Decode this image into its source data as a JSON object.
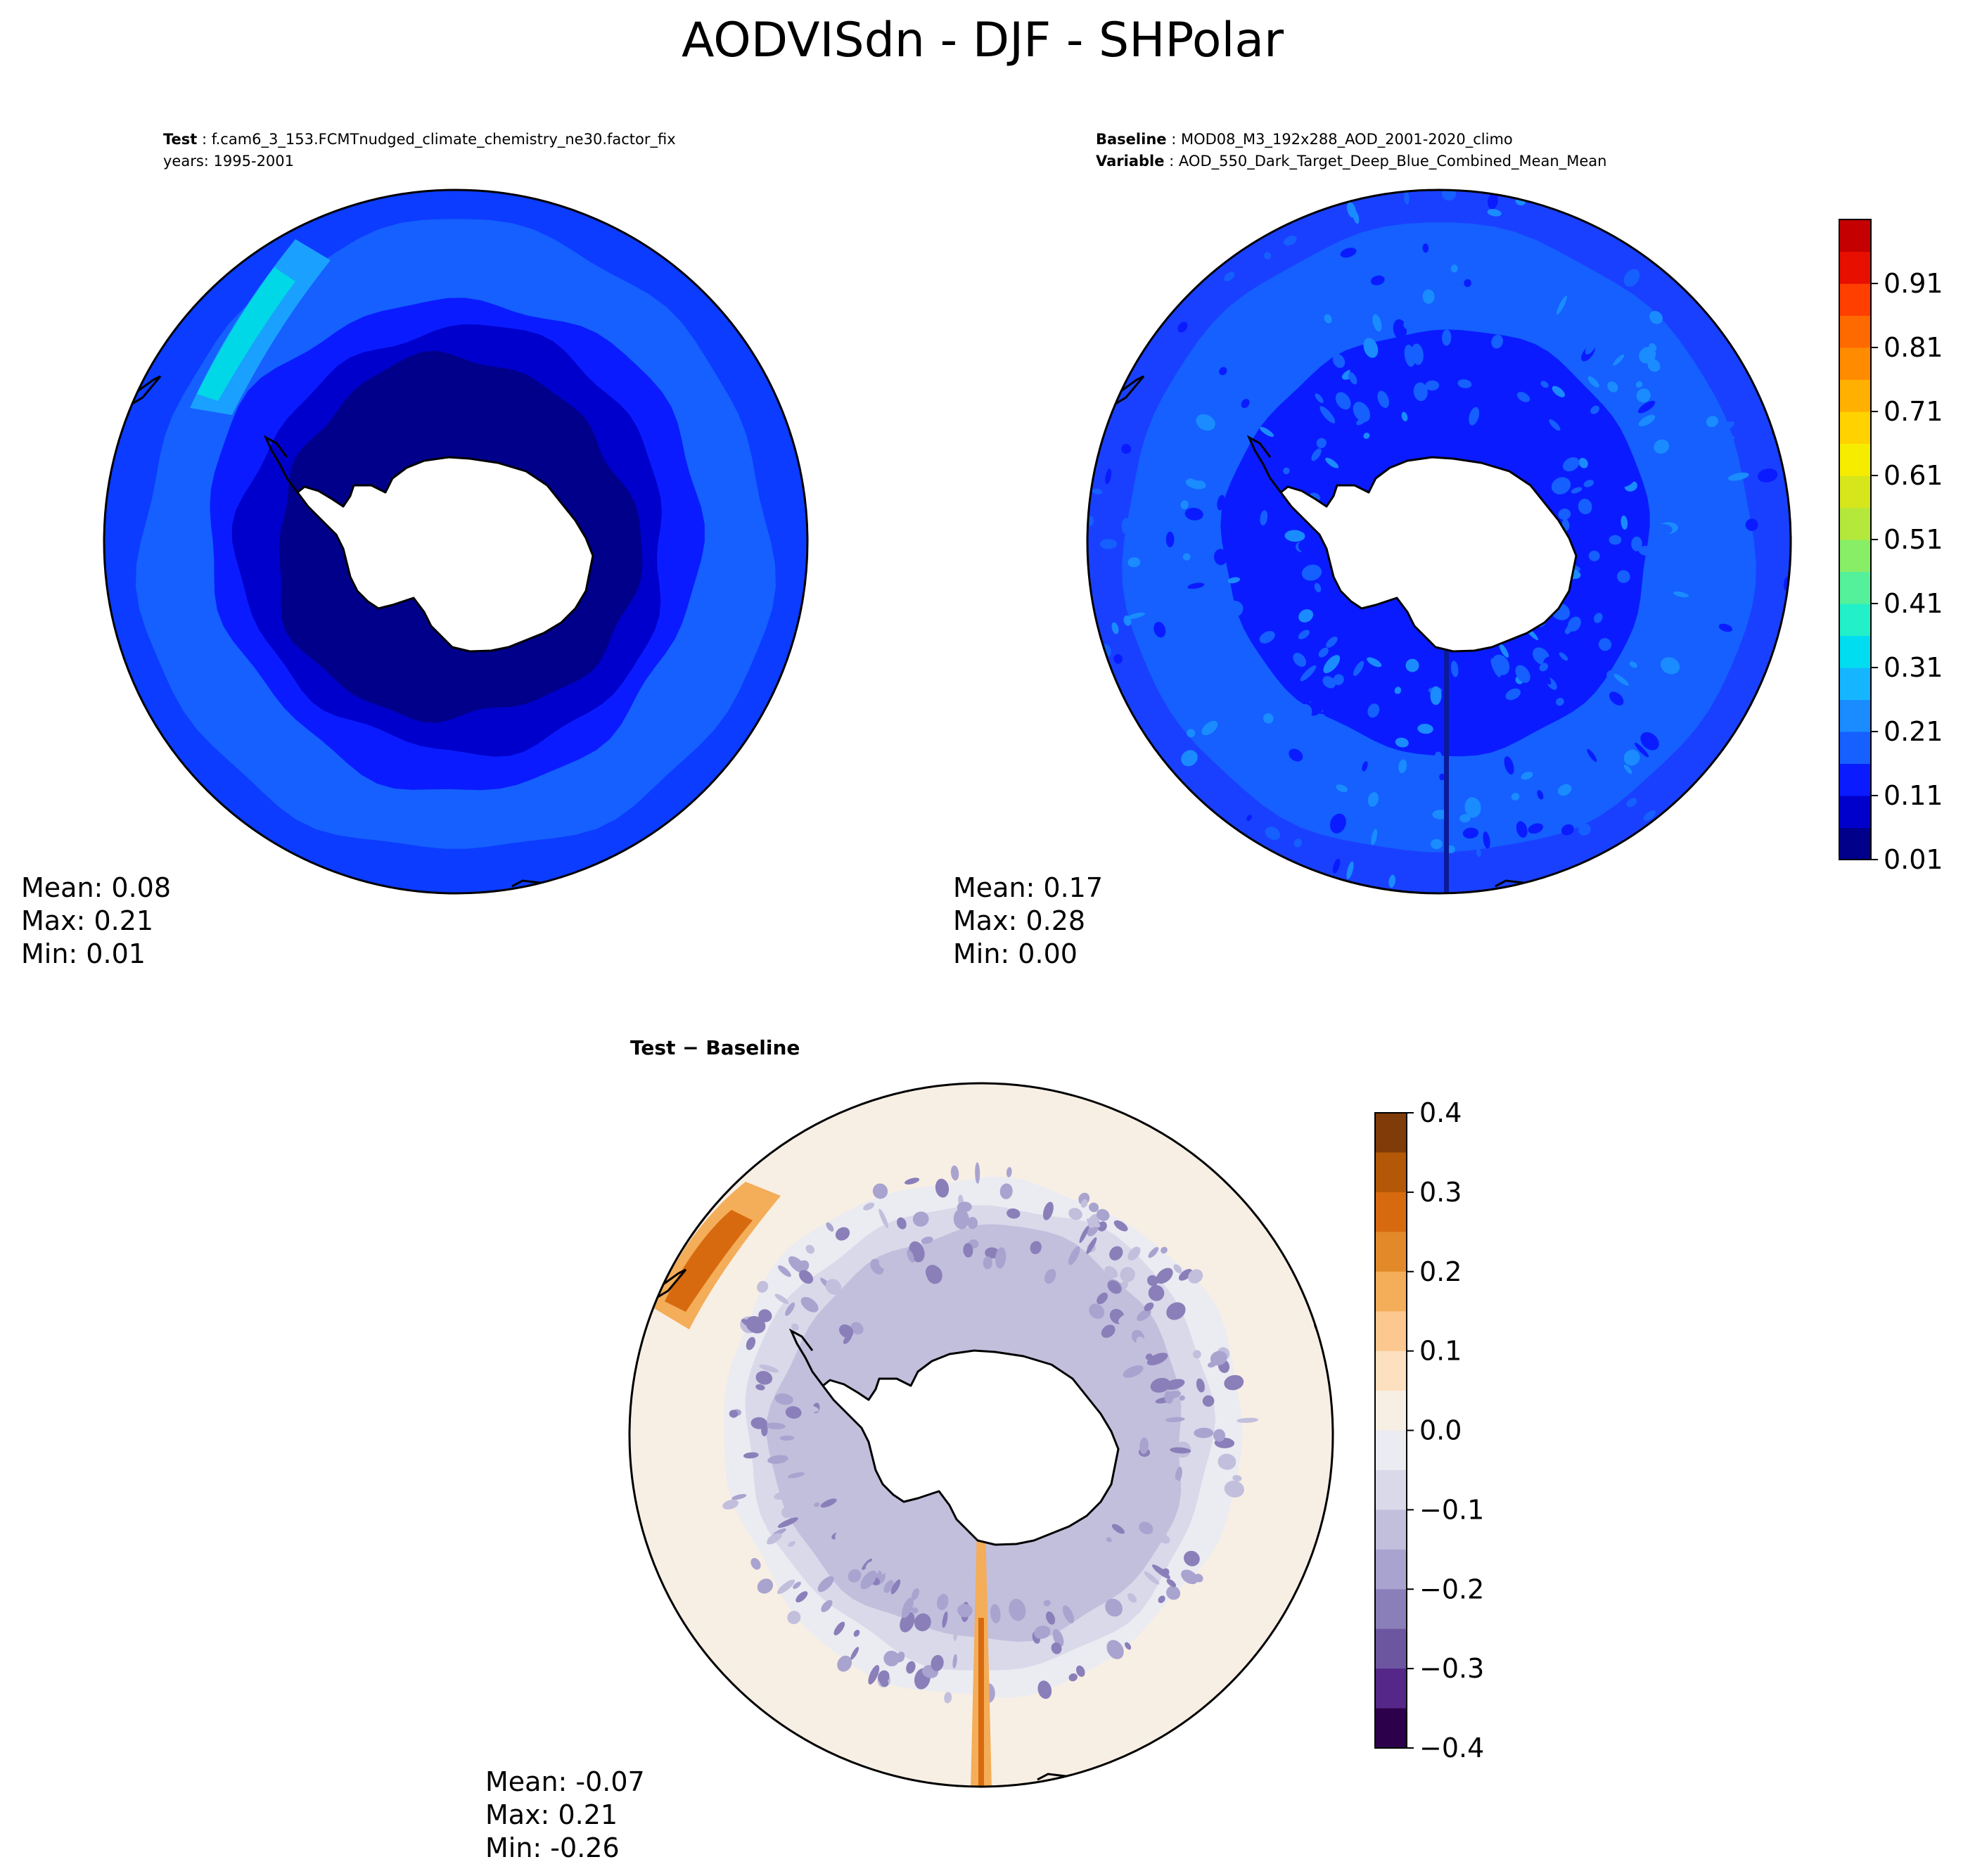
{
  "figure": {
    "title": "AODVISdn - DJF - SHPolar"
  },
  "chart_data": [
    {
      "type": "heatmap",
      "projection": "south-polar-stereographic",
      "panel": "test",
      "header": {
        "line1_key": "Test",
        "line1_value": "f.cam6_3_153.FCMTnudged_climate_chemistry_ne30.factor_fix",
        "line2": "years: 1995-2001"
      },
      "stats": {
        "mean": "Mean:  0.08",
        "max": "Max:  0.21",
        "min": "Min:  0.01"
      },
      "field_rings": [
        {
          "lat": -40,
          "value": 0.2
        },
        {
          "lat": -45,
          "value": 0.17
        },
        {
          "lat": -50,
          "value": 0.14
        },
        {
          "lat": -55,
          "value": 0.1
        },
        {
          "lat": -60,
          "value": 0.05
        },
        {
          "lat": -66,
          "value": 0.02
        }
      ],
      "colormap": "continuous-levels",
      "colorbar_shared_with": "baseline"
    },
    {
      "type": "heatmap",
      "projection": "south-polar-stereographic",
      "panel": "baseline",
      "header": {
        "line1_key": "Baseline",
        "line1_value": "MOD08_M3_192x288_AOD_2001-2020_climo",
        "line2_key": "Variable",
        "line2_value": "AOD_550_Dark_Target_Deep_Blue_Combined_Mean_Mean"
      },
      "stats": {
        "mean": "Mean:  0.17",
        "max": "Max:  0.28",
        "min": "Min:  0.00"
      },
      "field_rings": [
        {
          "lat": -40,
          "value": 0.17
        },
        {
          "lat": -48,
          "value": 0.16
        },
        {
          "lat": -55,
          "value": 0.15
        },
        {
          "lat": -62,
          "value": 0.14
        }
      ],
      "colorbar": {
        "range": [
          0.01,
          1.01
        ],
        "ticks": [
          "0.01",
          "0.11",
          "0.21",
          "0.31",
          "0.41",
          "0.51",
          "0.61",
          "0.71",
          "0.81",
          "0.91"
        ],
        "levels": [
          0.01,
          0.06,
          0.11,
          0.16,
          0.21,
          0.26,
          0.31,
          0.36,
          0.41,
          0.46,
          0.51,
          0.56,
          0.61,
          0.66,
          0.71,
          0.76,
          0.81,
          0.86,
          0.91,
          0.96,
          1.01
        ],
        "colors": [
          "#00008b",
          "#0000cd",
          "#0a1cff",
          "#1560ff",
          "#1a8cff",
          "#15b6ff",
          "#00ddf0",
          "#22f0c8",
          "#55f09a",
          "#88ee66",
          "#b4e83a",
          "#d6e61a",
          "#f6ec00",
          "#ffd200",
          "#ffb000",
          "#ff8c00",
          "#ff6a00",
          "#ff3f00",
          "#e80e00",
          "#c40000"
        ]
      }
    },
    {
      "type": "heatmap",
      "projection": "south-polar-stereographic",
      "panel": "difference",
      "header": {
        "line1_key": "Test − Baseline"
      },
      "stats": {
        "mean": "Mean: -0.07",
        "max": "Max:  0.21",
        "min": "Min: -0.26"
      },
      "field_rings": [
        {
          "lat": -40,
          "value": 0.04
        },
        {
          "lat": -44,
          "value": 0.02
        },
        {
          "lat": -48,
          "value": -0.02
        },
        {
          "lat": -52,
          "value": -0.06
        },
        {
          "lat": -56,
          "value": -0.11
        },
        {
          "lat": -60,
          "value": -0.14
        },
        {
          "lat": -64,
          "value": -0.12
        }
      ],
      "colorbar": {
        "range": [
          -0.4,
          0.4
        ],
        "ticks": [
          "0.4",
          "0.3",
          "0.2",
          "0.1",
          "0.0",
          "−0.1",
          "−0.2",
          "−0.3",
          "−0.4"
        ],
        "tick_values": [
          0.4,
          0.3,
          0.2,
          0.1,
          0.0,
          -0.1,
          -0.2,
          -0.3,
          -0.4
        ],
        "colors_top_to_bottom": [
          "#7f3b08",
          "#b35806",
          "#d76a0f",
          "#e28a2a",
          "#f4ad58",
          "#fcc890",
          "#fde0bf",
          "#f8efe4",
          "#ebebf2",
          "#d9d9ea",
          "#c2bfdd",
          "#a9a3cf",
          "#8a7fb9",
          "#6d56a0",
          "#542788",
          "#2d004b"
        ]
      }
    }
  ]
}
